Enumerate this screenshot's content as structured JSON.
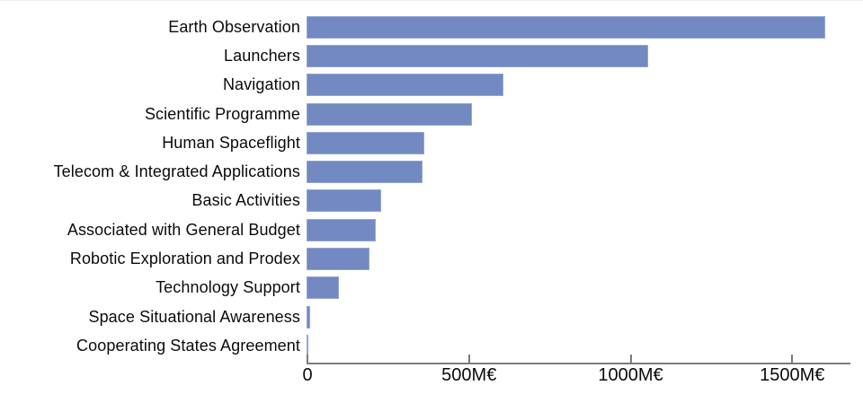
{
  "chart_data": {
    "type": "bar",
    "orientation": "horizontal",
    "title": "",
    "xlabel": "",
    "ylabel": "",
    "unit": "M€",
    "grid": false,
    "legend": false,
    "xlim": [
      0,
      1680
    ],
    "categories": [
      "Earth Observation",
      "Launchers",
      "Navigation",
      "Scientific Programme",
      "Human Spaceflight",
      "Telecom & Integrated Applications",
      "Basic Activities",
      "Associated with General Budget",
      "Robotic Exploration and Prodex",
      "Technology Support",
      "Space Situational Awareness",
      "Cooperating States Agreement"
    ],
    "values": [
      1604,
      1058,
      609,
      512,
      363,
      360,
      231,
      213,
      195,
      100,
      11,
      4
    ],
    "xticks": [
      {
        "value": 0,
        "label": "0"
      },
      {
        "value": 500,
        "label": "500M€"
      },
      {
        "value": 1000,
        "label": "1000M€"
      },
      {
        "value": 1500,
        "label": "1500M€"
      }
    ],
    "colors": {
      "bar_fill": "#7289c1",
      "bar_border": "#93a7d2",
      "axis": "#7b7b7b",
      "text": "#0b0b0b",
      "background": "#ffffff"
    }
  }
}
